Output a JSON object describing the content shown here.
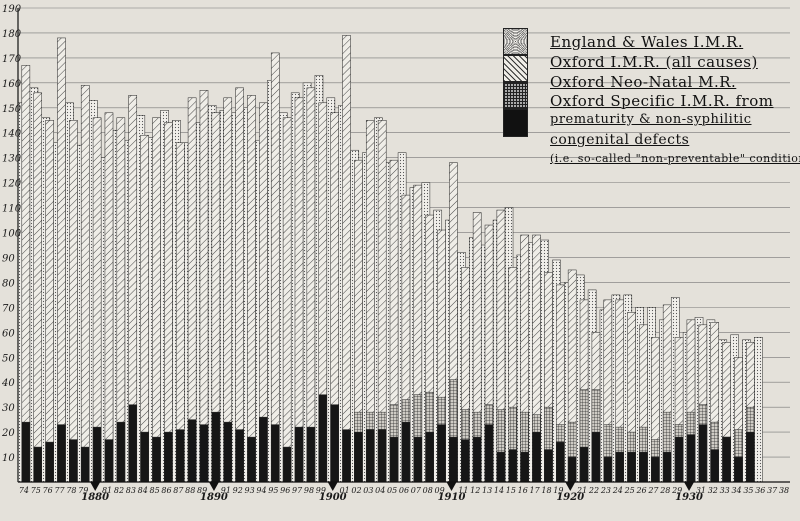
{
  "chart_data": {
    "type": "bar",
    "ylim": [
      0,
      190
    ],
    "y_ticks": [
      10,
      20,
      30,
      40,
      50,
      60,
      70,
      80,
      90,
      100,
      110,
      120,
      130,
      140,
      150,
      160,
      170,
      180,
      190
    ],
    "x_years": [
      1874,
      1875,
      1876,
      1877,
      1878,
      1879,
      1880,
      1881,
      1882,
      1883,
      1884,
      1885,
      1886,
      1887,
      1888,
      1889,
      1890,
      1891,
      1892,
      1893,
      1894,
      1895,
      1896,
      1897,
      1898,
      1899,
      1900,
      1901,
      1902,
      1903,
      1904,
      1905,
      1906,
      1907,
      1908,
      1909,
      1910,
      1911,
      1912,
      1913,
      1914,
      1915,
      1916,
      1917,
      1918,
      1919,
      1920,
      1921,
      1922,
      1923,
      1924,
      1925,
      1926,
      1927,
      1928,
      1929,
      1930,
      1931,
      1932,
      1933,
      1934,
      1935,
      1936,
      1937,
      1938
    ],
    "x_tick_labels": [
      "74",
      "75",
      "76",
      "77",
      "78",
      "79",
      "1880",
      "81",
      "82",
      "83",
      "84",
      "85",
      "86",
      "87",
      "88",
      "89",
      "1890",
      "91",
      "92",
      "93",
      "94",
      "95",
      "96",
      "97",
      "98",
      "99",
      "1900",
      "01",
      "02",
      "03",
      "04",
      "05",
      "06",
      "07",
      "08",
      "09",
      "1910",
      "11",
      "12",
      "13",
      "14",
      "15",
      "16",
      "17",
      "18",
      "19",
      "1920",
      "21",
      "22",
      "23",
      "24",
      "25",
      "26",
      "27",
      "28",
      "29",
      "1930",
      "31",
      "32",
      "33",
      "34",
      "35",
      "36",
      "37",
      "38"
    ],
    "legend": [
      {
        "label": "England & Wales I.M.R.",
        "pattern": "dotted",
        "color": "#9a9a9a"
      },
      {
        "label": "Oxford I.M.R. (all causes)",
        "pattern": "hatched",
        "color": "#4a4a4a"
      },
      {
        "label": "Oxford Neo-Natal M.R.",
        "pattern": "crosshatch",
        "color": "#3a3a3a"
      },
      {
        "label": "Oxford Specific I.M.R. from prematurity & non-syphilitic congenital defects (i.e. so-called \"non-preventable\" conditions.)",
        "pattern": "solid",
        "color": "#111111"
      }
    ],
    "legend_lines": [
      "England & Wales I.M.R.",
      "Oxford I.M.R. (all causes)",
      "Oxford Neo-Natal M.R.",
      "Oxford Specific I.M.R. from",
      "prematurity & non-syphilitic",
      "congenital defects",
      "(i.e. so-called \"non-preventable\" conditions.)"
    ],
    "series": [
      {
        "name": "England & Wales I.M.R.",
        "values": [
          152,
          158,
          146,
          136,
          152,
          135,
          153,
          130,
          141,
          137,
          147,
          138,
          149,
          145,
          136,
          144,
          151,
          149,
          148,
          150,
          137,
          161,
          148,
          156,
          160,
          163,
          154,
          151,
          133,
          132,
          146,
          128,
          132,
          118,
          120,
          109,
          105,
          92,
          98,
          95,
          105,
          110,
          91,
          96,
          97,
          89,
          80,
          83,
          77,
          69,
          75,
          75,
          70,
          70,
          65,
          74,
          60,
          66,
          65,
          57,
          59,
          57,
          58,
          null,
          null
        ]
      },
      {
        "name": "Oxford I.M.R. (all causes)",
        "values": [
          167,
          156,
          145,
          178,
          145,
          159,
          146,
          148,
          146,
          155,
          139,
          146,
          144,
          136,
          154,
          157,
          148,
          154,
          158,
          155,
          152,
          172,
          146,
          154,
          158,
          152,
          148,
          179,
          129,
          145,
          145,
          129,
          115,
          119,
          107,
          101,
          128,
          86,
          108,
          103,
          109,
          86,
          99,
          99,
          84,
          79,
          85,
          73,
          60,
          73,
          73,
          68,
          63,
          58,
          71,
          58,
          65,
          63,
          64,
          56,
          50,
          56,
          null,
          null,
          null
        ]
      },
      {
        "name": "Oxford Neo-Natal M.R.",
        "values": [
          null,
          null,
          null,
          null,
          null,
          null,
          null,
          null,
          null,
          null,
          null,
          null,
          null,
          null,
          null,
          null,
          null,
          null,
          null,
          null,
          null,
          null,
          null,
          null,
          null,
          null,
          null,
          null,
          28,
          28,
          28,
          31,
          33,
          35,
          36,
          34,
          41,
          29,
          28,
          31,
          29,
          30,
          28,
          27,
          30,
          23,
          24,
          37,
          37,
          23,
          22,
          20,
          22,
          17,
          28,
          23,
          28,
          31,
          24,
          18,
          21,
          30,
          null,
          null,
          null
        ]
      },
      {
        "name": "Oxford Specific I.M.R. from prematurity & non-syphilitic congenital defects",
        "values": [
          24,
          14,
          16,
          23,
          17,
          14,
          22,
          17,
          24,
          31,
          20,
          18,
          20,
          21,
          25,
          23,
          28,
          24,
          21,
          18,
          26,
          23,
          14,
          22,
          22,
          35,
          31,
          21,
          20,
          21,
          21,
          18,
          24,
          18,
          20,
          23,
          18,
          17,
          18,
          23,
          12,
          13,
          12,
          20,
          13,
          16,
          10,
          14,
          20,
          10,
          12,
          12,
          12,
          10,
          12,
          18,
          19,
          23,
          13,
          18,
          10,
          20,
          null,
          null,
          null
        ]
      }
    ]
  }
}
